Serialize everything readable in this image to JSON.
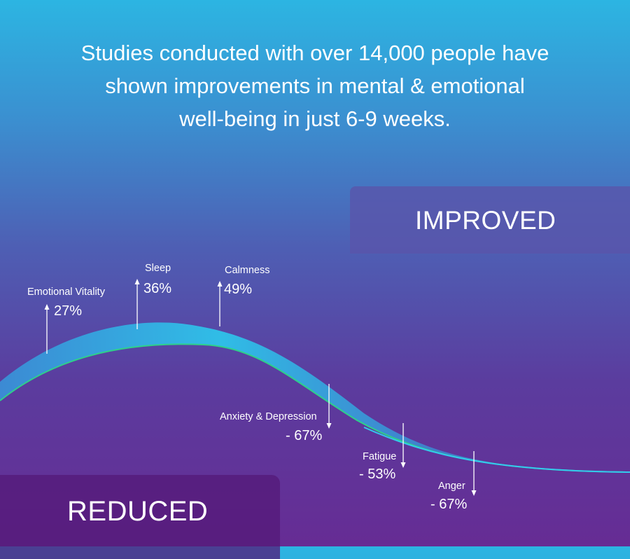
{
  "headline": {
    "line1": "Studies conducted with over 14,000 people have",
    "line2": "shown improvements in mental & emotional",
    "line3": "well-being in just 6-9 weeks."
  },
  "improved_label": "IMPROVED",
  "reduced_label": "REDUCED",
  "improved": [
    {
      "name": "Emotional Vitality",
      "value": "27%"
    },
    {
      "name": "Sleep",
      "value": "36%"
    },
    {
      "name": "Calmness",
      "value": "49%"
    }
  ],
  "reduced": [
    {
      "name": "Anxiety & Depression",
      "value": "- 67%"
    },
    {
      "name": "Fatigue",
      "value": "- 53%"
    },
    {
      "name": "Anger",
      "value": "- 67%"
    }
  ],
  "colors": {
    "wave_top": "#2ec3ea",
    "wave_edge": "#2ed18a"
  }
}
